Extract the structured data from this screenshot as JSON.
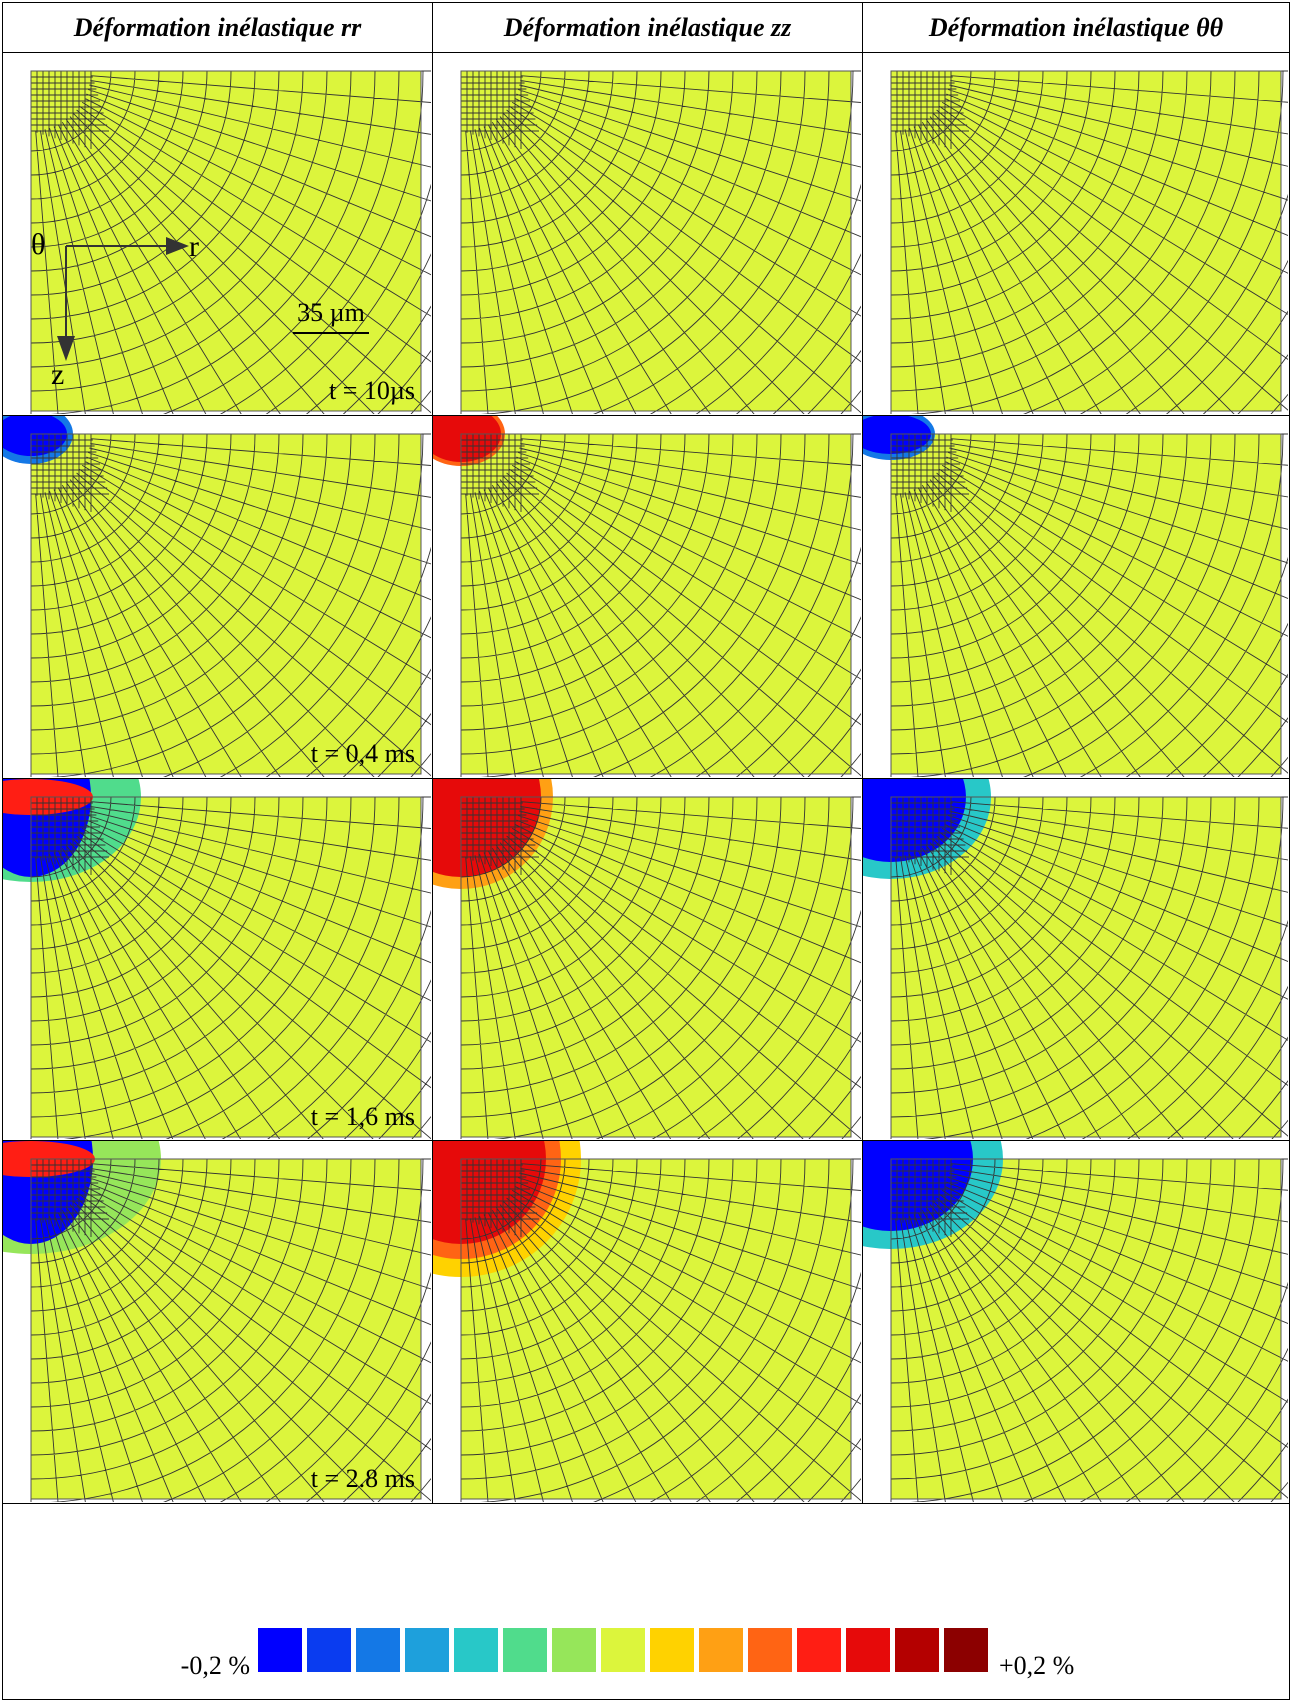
{
  "header": {
    "columns": [
      "Déformation inélastique rr",
      "Déformation inélastique zz",
      "Déformation inélastique θθ"
    ]
  },
  "rows": [
    {
      "time": "t = 10µs"
    },
    {
      "time": "t = 0,4 ms"
    },
    {
      "time": "t = 1,6 ms"
    },
    {
      "time": "t = 2.8 ms"
    }
  ],
  "annotations": {
    "theta": "θ",
    "r": "r",
    "z": "z",
    "scale": "35 µm"
  },
  "legend": {
    "min_label": "-0,2 %",
    "max_label": "+0,2 %",
    "colors": [
      "#0000ff",
      "#0a3cf0",
      "#1478e6",
      "#1ea0dc",
      "#28c8c8",
      "#50dc8c",
      "#96e65a",
      "#dcf53c",
      "#ffd200",
      "#ffa014",
      "#ff6414",
      "#ff1e14",
      "#e60a0a",
      "#b40000",
      "#8c0000"
    ]
  }
}
